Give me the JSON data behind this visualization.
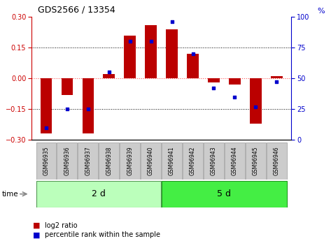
{
  "title": "GDS2566 / 13354",
  "samples": [
    "GSM96935",
    "GSM96936",
    "GSM96937",
    "GSM96938",
    "GSM96939",
    "GSM96940",
    "GSM96941",
    "GSM96942",
    "GSM96943",
    "GSM96944",
    "GSM96945",
    "GSM96946"
  ],
  "log2_ratio": [
    -0.27,
    -0.08,
    -0.27,
    0.02,
    0.21,
    0.26,
    0.24,
    0.12,
    -0.02,
    -0.03,
    -0.22,
    0.01
  ],
  "percentile": [
    10,
    25,
    25,
    55,
    80,
    80,
    96,
    70,
    42,
    35,
    27,
    47
  ],
  "group1_count": 6,
  "group2_count": 6,
  "group1_label": "2 d",
  "group2_label": "5 d",
  "time_label": "time",
  "ylim_left": [
    -0.3,
    0.3
  ],
  "ylim_right": [
    0,
    100
  ],
  "yticks_left": [
    -0.3,
    -0.15,
    0.0,
    0.15,
    0.3
  ],
  "yticks_right": [
    0,
    25,
    50,
    75,
    100
  ],
  "bar_color": "#BB0000",
  "dot_color": "#0000CC",
  "group1_color": "#BBFFBB",
  "group2_color": "#44EE44",
  "zero_line_color": "#FF5555",
  "tick_label_color_left": "#CC0000",
  "tick_label_color_right": "#0000CC",
  "legend_red_label": "log2 ratio",
  "legend_blue_label": "percentile rank within the sample",
  "bar_width": 0.55,
  "dot_size": 12
}
